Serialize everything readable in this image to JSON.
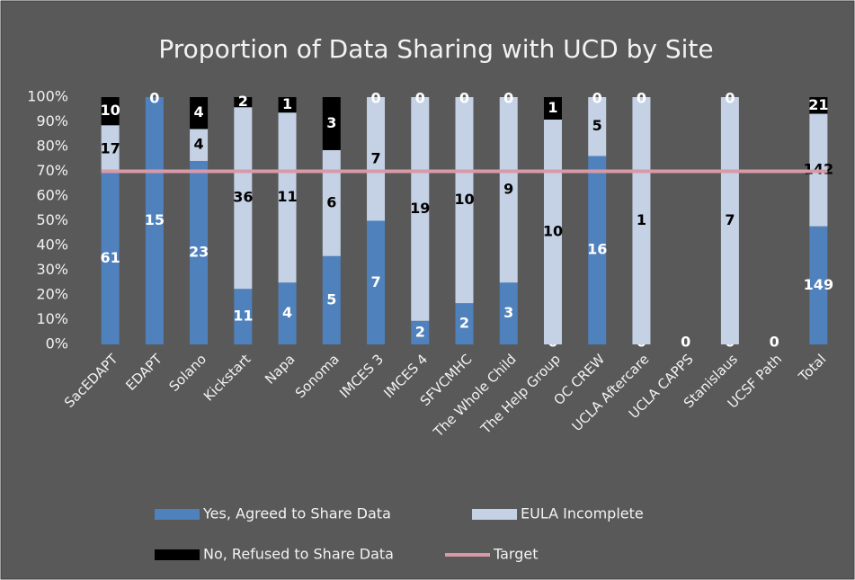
{
  "chart_data": {
    "type": "bar",
    "stacking": "percent",
    "title": "Proportion of Data Sharing with UCD by Site",
    "categories": [
      "SacEDAPT",
      "EDAPT",
      "Solano",
      "Kickstart",
      "Napa",
      "Sonoma",
      "IMCES 3",
      "IMCES 4",
      "SFVCMHC",
      "The Whole Child",
      "The Help Group",
      "OC CREW",
      "UCLA Aftercare",
      "UCLA CAPPS",
      "Stanislaus",
      "UCSF Path",
      "Total"
    ],
    "series": [
      {
        "name": "Yes, Agreed to Share Data",
        "color": "#4f81bd",
        "label_color": "#ffffff",
        "values": [
          61,
          15,
          23,
          11,
          4,
          5,
          7,
          2,
          2,
          3,
          0,
          16,
          0,
          0,
          0,
          0,
          149
        ]
      },
      {
        "name": "EULA Incomplete",
        "color": "#c5d1e4",
        "label_color": "#000000",
        "values": [
          17,
          null,
          4,
          36,
          11,
          6,
          7,
          19,
          10,
          9,
          10,
          5,
          1,
          null,
          7,
          null,
          142
        ]
      },
      {
        "name": "No, Refused to Share Data",
        "color": "#000000",
        "label_color": "#ffffff",
        "values": [
          10,
          0,
          4,
          2,
          1,
          3,
          0,
          0,
          0,
          0,
          1,
          0,
          0,
          null,
          0,
          null,
          21
        ]
      }
    ],
    "target": {
      "name": "Target",
      "value": 70,
      "color": "#d89aa8"
    },
    "ylim": [
      0,
      100
    ],
    "yticks": [
      {
        "value": 0,
        "label": "0%"
      },
      {
        "value": 10,
        "label": "10%"
      },
      {
        "value": 20,
        "label": "20%"
      },
      {
        "value": 30,
        "label": "30%"
      },
      {
        "value": 40,
        "label": "40%"
      },
      {
        "value": 50,
        "label": "50%"
      },
      {
        "value": 60,
        "label": "60%"
      },
      {
        "value": 70,
        "label": "70%"
      },
      {
        "value": 80,
        "label": "80%"
      },
      {
        "value": 90,
        "label": "90%"
      },
      {
        "value": 100,
        "label": "100%"
      }
    ],
    "grid": false
  }
}
